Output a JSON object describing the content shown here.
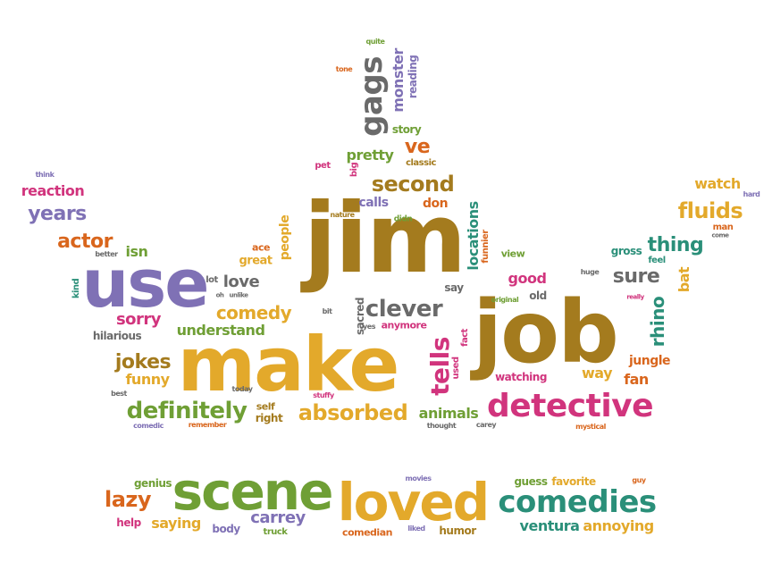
{
  "palette": {
    "brown": "#a47b1e",
    "gold": "#e3a92b",
    "purple": "#7f71b5",
    "green": "#6f9f35",
    "teal": "#2a8f79",
    "gray": "#6a6a6a",
    "magenta": "#d1347d",
    "orange": "#d9661d"
  },
  "words": [
    {
      "text": "jim",
      "color": "brown",
      "rot": 0
    },
    {
      "text": "job",
      "color": "brown",
      "rot": 0
    },
    {
      "text": "make",
      "color": "gold",
      "rot": 0
    },
    {
      "text": "use",
      "color": "purple",
      "rot": 0
    },
    {
      "text": "scene",
      "color": "green",
      "rot": 0
    },
    {
      "text": "loved",
      "color": "gold",
      "rot": 0
    },
    {
      "text": "comedies",
      "color": "teal",
      "rot": 0
    },
    {
      "text": "detective",
      "color": "magenta",
      "rot": 0
    },
    {
      "text": "gags",
      "color": "gray",
      "rot": -90
    },
    {
      "text": "monster",
      "color": "purple",
      "rot": -90
    },
    {
      "text": "reading",
      "color": "purple",
      "rot": -90
    },
    {
      "text": "quite",
      "color": "green",
      "rot": 0
    },
    {
      "text": "tone",
      "color": "orange",
      "rot": 0
    },
    {
      "text": "story",
      "color": "green",
      "rot": 0
    },
    {
      "text": "ve",
      "color": "orange",
      "rot": 0
    },
    {
      "text": "pretty",
      "color": "green",
      "rot": 0
    },
    {
      "text": "classic",
      "color": "brown",
      "rot": 0
    },
    {
      "text": "pet",
      "color": "magenta",
      "rot": 0
    },
    {
      "text": "big",
      "color": "magenta",
      "rot": -90
    },
    {
      "text": "second",
      "color": "brown",
      "rot": 0
    },
    {
      "text": "think",
      "color": "purple",
      "rot": 0
    },
    {
      "text": "reaction",
      "color": "magenta",
      "rot": 0
    },
    {
      "text": "years",
      "color": "purple",
      "rot": 0
    },
    {
      "text": "actor",
      "color": "orange",
      "rot": 0
    },
    {
      "text": "isn",
      "color": "green",
      "rot": 0
    },
    {
      "text": "better",
      "color": "gray",
      "rot": 0
    },
    {
      "text": "kind",
      "color": "teal",
      "rot": -90
    },
    {
      "text": "calls",
      "color": "purple",
      "rot": 0
    },
    {
      "text": "don",
      "color": "orange",
      "rot": 0
    },
    {
      "text": "nature",
      "color": "brown",
      "rot": 0
    },
    {
      "text": "didn",
      "color": "green",
      "rot": 0
    },
    {
      "text": "locations",
      "color": "teal",
      "rot": -90
    },
    {
      "text": "funnier",
      "color": "orange",
      "rot": -90
    },
    {
      "text": "view",
      "color": "green",
      "rot": 0
    },
    {
      "text": "people",
      "color": "gold",
      "rot": -90
    },
    {
      "text": "ace",
      "color": "orange",
      "rot": 0
    },
    {
      "text": "great",
      "color": "gold",
      "rot": 0
    },
    {
      "text": "lot",
      "color": "gray",
      "rot": 0
    },
    {
      "text": "love",
      "color": "gray",
      "rot": 0
    },
    {
      "text": "oh",
      "color": "gray",
      "rot": 0
    },
    {
      "text": "unlike",
      "color": "gray",
      "rot": 0
    },
    {
      "text": "comedy",
      "color": "gold",
      "rot": 0
    },
    {
      "text": "clever",
      "color": "gray",
      "rot": 0
    },
    {
      "text": "bit",
      "color": "gray",
      "rot": 0
    },
    {
      "text": "sacred",
      "color": "gray",
      "rot": -90
    },
    {
      "text": "yes",
      "color": "gray",
      "rot": 0
    },
    {
      "text": "anymore",
      "color": "magenta",
      "rot": 0
    },
    {
      "text": "sorry",
      "color": "magenta",
      "rot": 0
    },
    {
      "text": "hilarious",
      "color": "gray",
      "rot": 0
    },
    {
      "text": "understand",
      "color": "green",
      "rot": 0
    },
    {
      "text": "jokes",
      "color": "brown",
      "rot": 0
    },
    {
      "text": "funny",
      "color": "gold",
      "rot": 0
    },
    {
      "text": "best",
      "color": "gray",
      "rot": 0
    },
    {
      "text": "today",
      "color": "gray",
      "rot": 0
    },
    {
      "text": "definitely",
      "color": "green",
      "rot": 0
    },
    {
      "text": "self",
      "color": "brown",
      "rot": 0
    },
    {
      "text": "right",
      "color": "brown",
      "rot": 0
    },
    {
      "text": "absorbed",
      "color": "gold",
      "rot": 0
    },
    {
      "text": "stuffy",
      "color": "magenta",
      "rot": 0
    },
    {
      "text": "comedic",
      "color": "purple",
      "rot": 0
    },
    {
      "text": "remember",
      "color": "orange",
      "rot": 0
    },
    {
      "text": "tells",
      "color": "magenta",
      "rot": -90
    },
    {
      "text": "used",
      "color": "magenta",
      "rot": -90
    },
    {
      "text": "fact",
      "color": "magenta",
      "rot": -90
    },
    {
      "text": "say",
      "color": "gray",
      "rot": 0
    },
    {
      "text": "animals",
      "color": "green",
      "rot": 0
    },
    {
      "text": "thought",
      "color": "gray",
      "rot": 0
    },
    {
      "text": "carey",
      "color": "gray",
      "rot": 0
    },
    {
      "text": "good",
      "color": "magenta",
      "rot": 0
    },
    {
      "text": "original",
      "color": "green",
      "rot": 0
    },
    {
      "text": "old",
      "color": "gray",
      "rot": 0
    },
    {
      "text": "watching",
      "color": "magenta",
      "rot": 0
    },
    {
      "text": "huge",
      "color": "gray",
      "rot": 0
    },
    {
      "text": "watch",
      "color": "gold",
      "rot": 0
    },
    {
      "text": "hard",
      "color": "purple",
      "rot": 0
    },
    {
      "text": "fluids",
      "color": "gold",
      "rot": 0
    },
    {
      "text": "man",
      "color": "orange",
      "rot": 0
    },
    {
      "text": "come",
      "color": "gray",
      "rot": 0
    },
    {
      "text": "gross",
      "color": "teal",
      "rot": 0
    },
    {
      "text": "thing",
      "color": "teal",
      "rot": 0
    },
    {
      "text": "feel",
      "color": "teal",
      "rot": 0
    },
    {
      "text": "sure",
      "color": "gray",
      "rot": 0
    },
    {
      "text": "really",
      "color": "magenta",
      "rot": 0
    },
    {
      "text": "rhino",
      "color": "teal",
      "rot": -90
    },
    {
      "text": "bat",
      "color": "gold",
      "rot": -90
    },
    {
      "text": "jungle",
      "color": "orange",
      "rot": 0
    },
    {
      "text": "way",
      "color": "gold",
      "rot": 0
    },
    {
      "text": "fan",
      "color": "orange",
      "rot": 0
    },
    {
      "text": "mystical",
      "color": "orange",
      "rot": 0
    },
    {
      "text": "genius",
      "color": "green",
      "rot": 0
    },
    {
      "text": "lazy",
      "color": "orange",
      "rot": 0
    },
    {
      "text": "help",
      "color": "magenta",
      "rot": 0
    },
    {
      "text": "saying",
      "color": "gold",
      "rot": 0
    },
    {
      "text": "body",
      "color": "purple",
      "rot": 0
    },
    {
      "text": "carrey",
      "color": "purple",
      "rot": 0
    },
    {
      "text": "truck",
      "color": "green",
      "rot": 0
    },
    {
      "text": "movies",
      "color": "purple",
      "rot": 0
    },
    {
      "text": "comedian",
      "color": "orange",
      "rot": 0
    },
    {
      "text": "liked",
      "color": "purple",
      "rot": 0
    },
    {
      "text": "humor",
      "color": "brown",
      "rot": 0
    },
    {
      "text": "guess",
      "color": "green",
      "rot": 0
    },
    {
      "text": "favorite",
      "color": "gold",
      "rot": 0
    },
    {
      "text": "guy",
      "color": "orange",
      "rot": 0
    },
    {
      "text": "ventura",
      "color": "teal",
      "rot": 0
    },
    {
      "text": "annoying",
      "color": "gold",
      "rot": 0
    }
  ]
}
